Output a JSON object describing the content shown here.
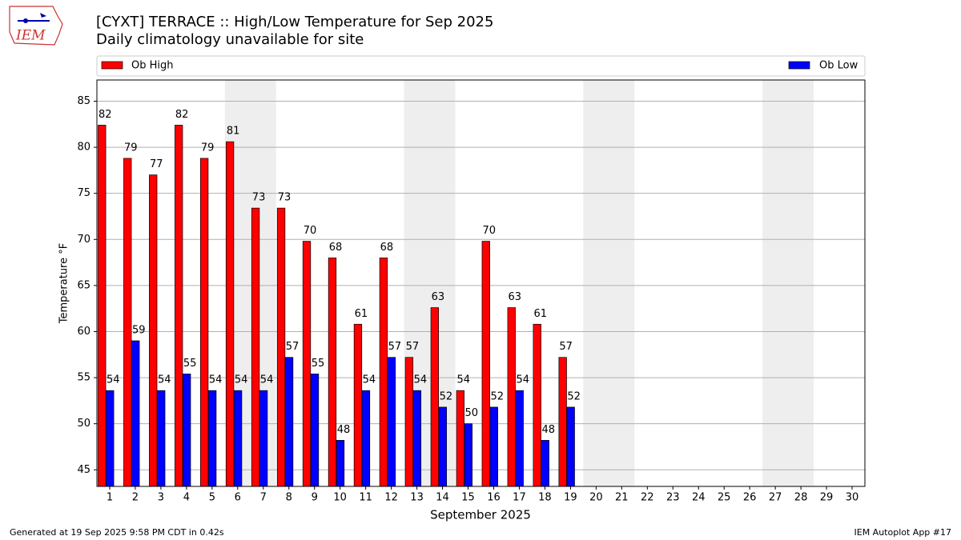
{
  "logo": "IEM",
  "footer": {
    "left": "Generated at 19 Sep 2025 9:58 PM CDT in 0.42s",
    "right": "IEM Autoplot App #17"
  },
  "chart_data": {
    "type": "bar",
    "title": "[CYXT] TERRACE :: High/Low Temperature for Sep 2025",
    "subtitle": "Daily climatology unavailable for site",
    "x_label": "September 2025",
    "y_label": "Temperature °F",
    "categories": [
      "1",
      "2",
      "3",
      "4",
      "5",
      "6",
      "7",
      "8",
      "9",
      "10",
      "11",
      "12",
      "13",
      "14",
      "15",
      "16",
      "17",
      "18",
      "19",
      "20",
      "21",
      "22",
      "23",
      "24",
      "25",
      "26",
      "27",
      "28",
      "29",
      "30"
    ],
    "series": [
      {
        "name": "Ob High",
        "color": "#ff0000",
        "values": [
          82.4,
          78.8,
          77.0,
          82.4,
          78.8,
          80.6,
          73.4,
          73.4,
          69.8,
          68.0,
          60.8,
          68.0,
          57.2,
          62.6,
          53.6,
          69.8,
          62.6,
          60.8,
          57.2,
          null,
          null,
          null,
          null,
          null,
          null,
          null,
          null,
          null,
          null,
          null
        ],
        "value_labels": [
          "82",
          "79",
          "77",
          "82",
          "79",
          "81",
          "73",
          "73",
          "70",
          "68",
          "61",
          "68",
          "57",
          "63",
          "54",
          "70",
          "63",
          "61",
          "57",
          null,
          null,
          null,
          null,
          null,
          null,
          null,
          null,
          null,
          null,
          null
        ]
      },
      {
        "name": "Ob Low",
        "color": "#0000ff",
        "values": [
          53.6,
          59.0,
          53.6,
          55.4,
          53.6,
          53.6,
          53.6,
          57.2,
          55.4,
          48.2,
          53.6,
          57.2,
          53.6,
          51.8,
          50.0,
          51.8,
          53.6,
          48.2,
          51.8,
          null,
          null,
          null,
          null,
          null,
          null,
          null,
          null,
          null,
          null,
          null
        ],
        "value_labels": [
          "54",
          "59",
          "54",
          "55",
          "54",
          "54",
          "54",
          "57",
          "55",
          "48",
          "54",
          "57",
          "54",
          "52",
          "50",
          "52",
          "54",
          "48",
          "52",
          null,
          null,
          null,
          null,
          null,
          null,
          null,
          null,
          null,
          null,
          null
        ]
      }
    ],
    "ylim": [
      43.2,
      87.3
    ],
    "yticks": [
      45,
      50,
      55,
      60,
      65,
      70,
      75,
      80,
      85
    ],
    "grid": true
  }
}
